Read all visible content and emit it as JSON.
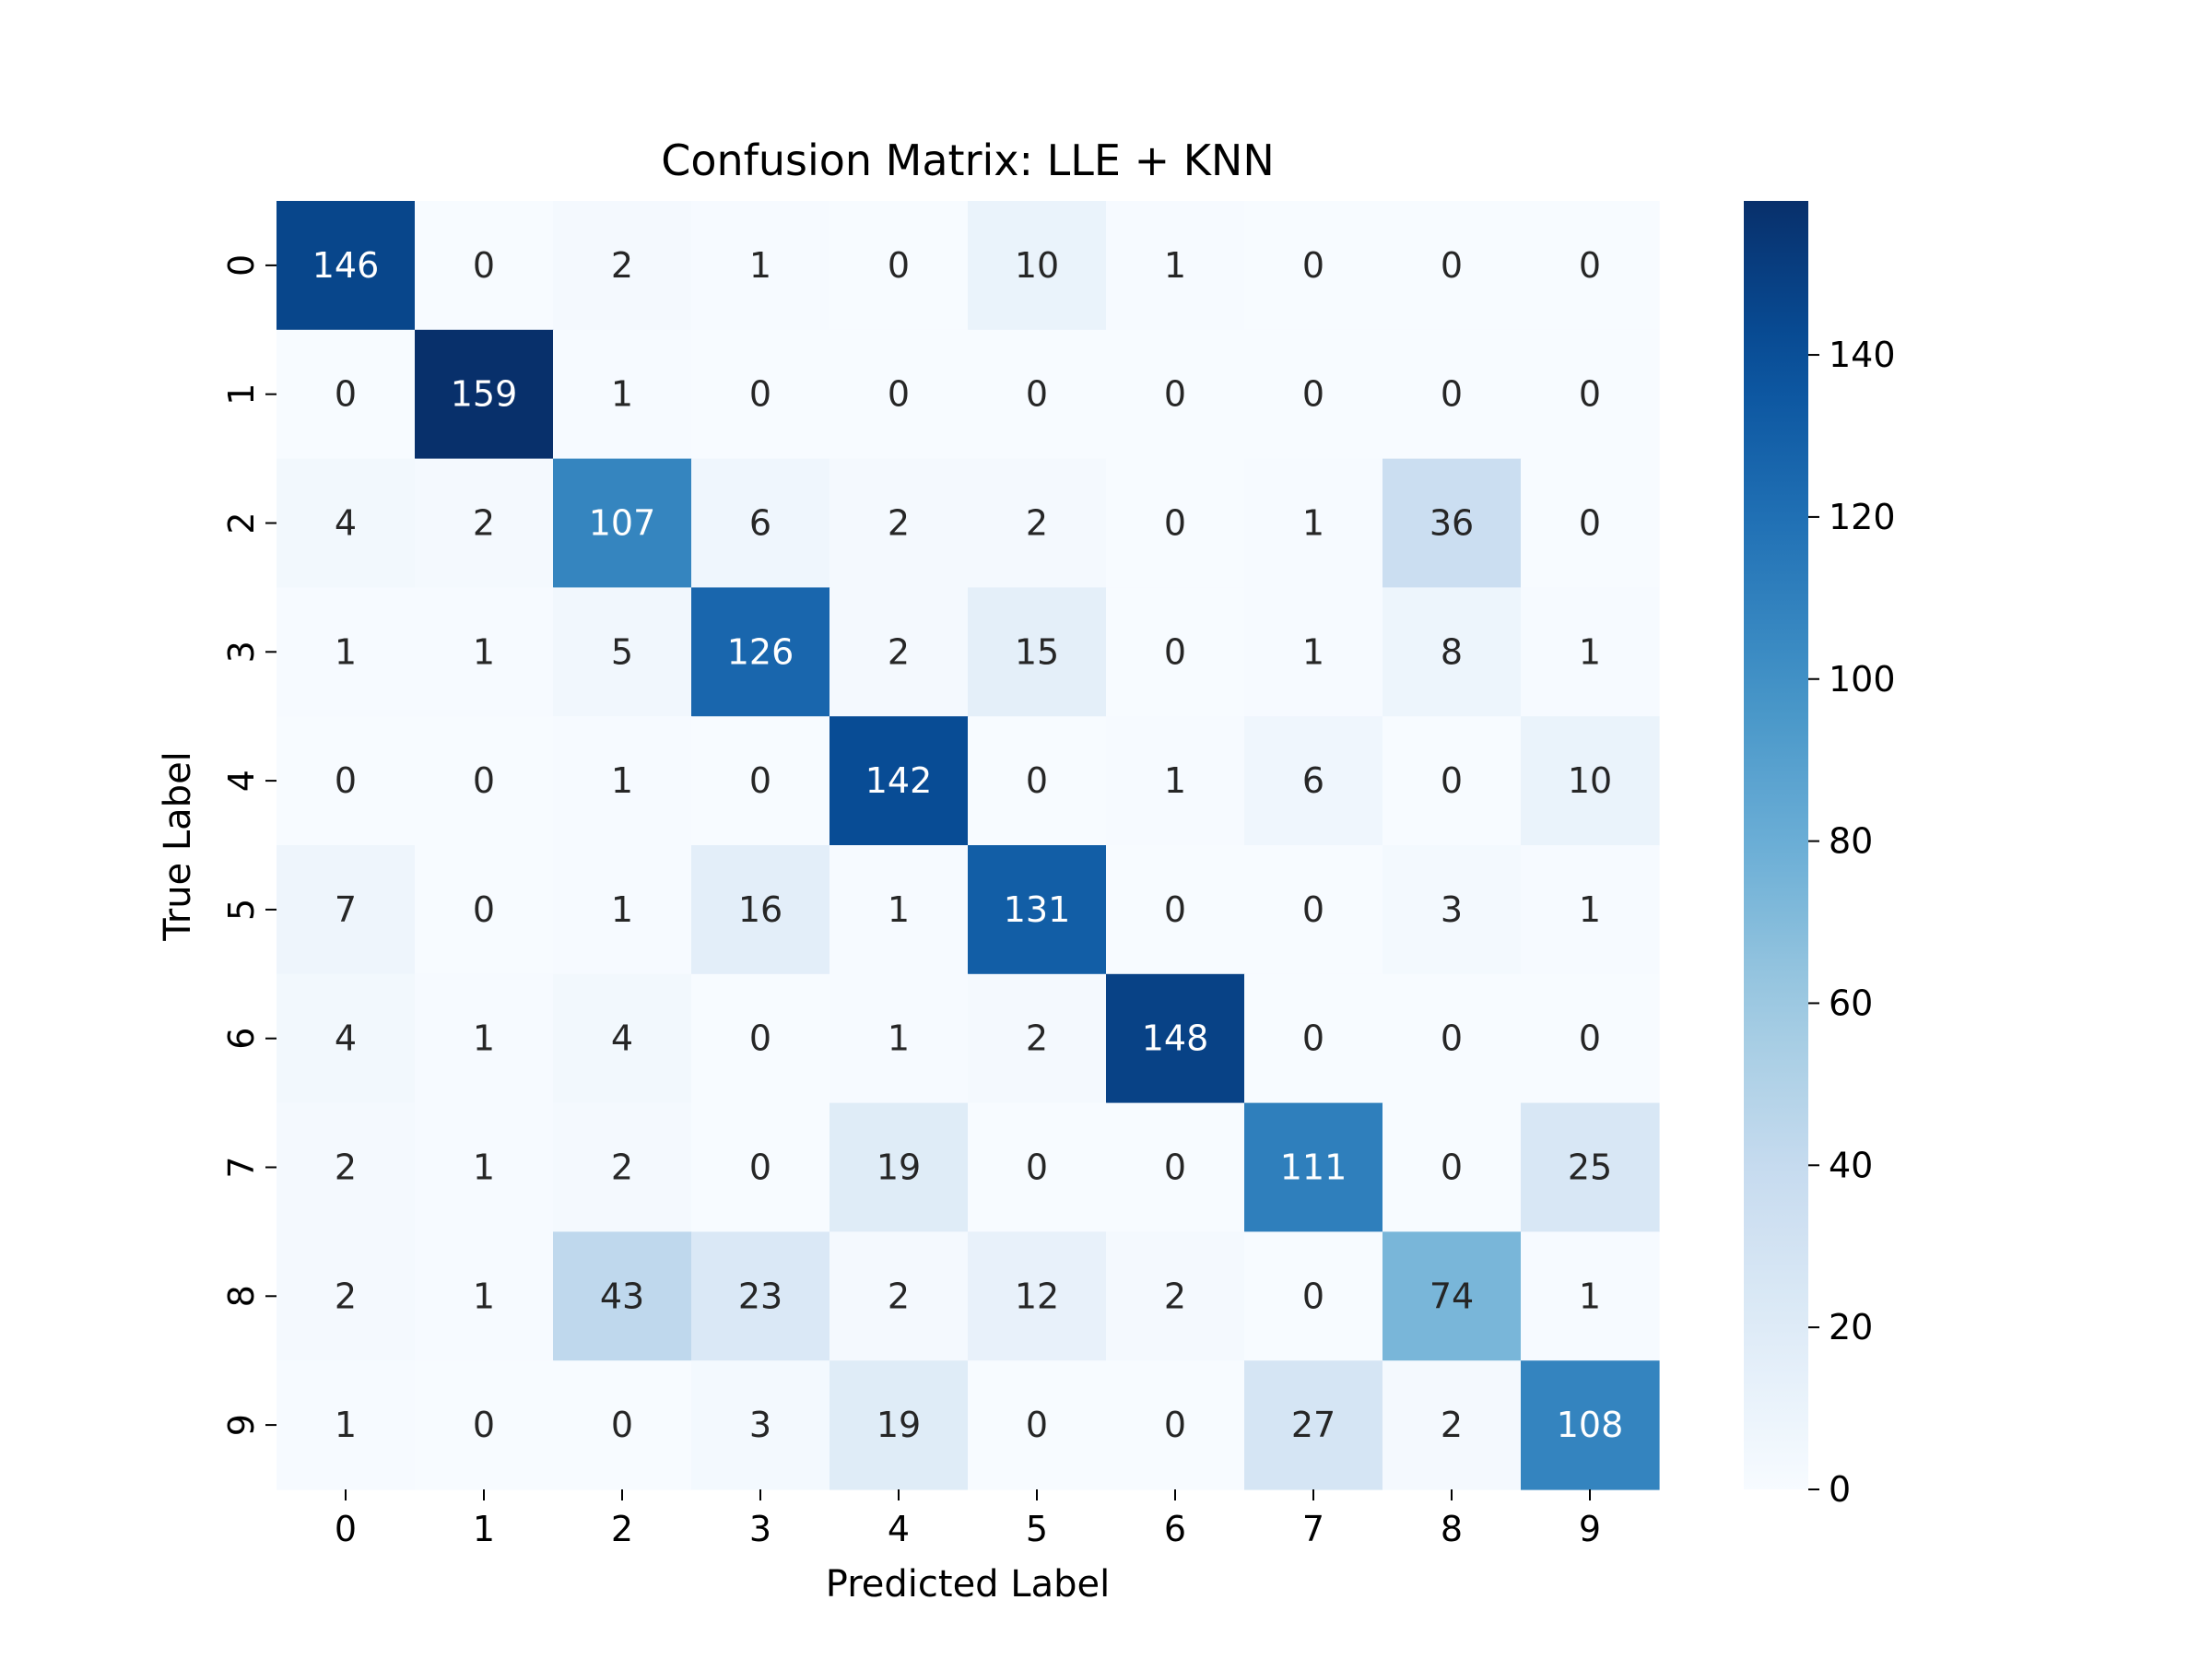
{
  "chart_data": {
    "type": "heatmap",
    "title": "Confusion Matrix: LLE + KNN",
    "xlabel": "Predicted Label",
    "ylabel": "True Label",
    "x_categories": [
      "0",
      "1",
      "2",
      "3",
      "4",
      "5",
      "6",
      "7",
      "8",
      "9"
    ],
    "y_categories": [
      "0",
      "1",
      "2",
      "3",
      "4",
      "5",
      "6",
      "7",
      "8",
      "9"
    ],
    "values": [
      [
        146,
        0,
        2,
        1,
        0,
        10,
        1,
        0,
        0,
        0
      ],
      [
        0,
        159,
        1,
        0,
        0,
        0,
        0,
        0,
        0,
        0
      ],
      [
        4,
        2,
        107,
        6,
        2,
        2,
        0,
        1,
        36,
        0
      ],
      [
        1,
        1,
        5,
        126,
        2,
        15,
        0,
        1,
        8,
        1
      ],
      [
        0,
        0,
        1,
        0,
        142,
        0,
        1,
        6,
        0,
        10
      ],
      [
        7,
        0,
        1,
        16,
        1,
        131,
        0,
        0,
        3,
        1
      ],
      [
        4,
        1,
        4,
        0,
        1,
        2,
        148,
        0,
        0,
        0
      ],
      [
        2,
        1,
        2,
        0,
        19,
        0,
        0,
        111,
        0,
        25
      ],
      [
        2,
        1,
        43,
        23,
        2,
        12,
        2,
        0,
        74,
        1
      ],
      [
        1,
        0,
        0,
        3,
        19,
        0,
        0,
        27,
        2,
        108
      ]
    ],
    "colorbar": {
      "range": [
        0,
        159
      ],
      "ticks": [
        "0",
        "20",
        "40",
        "60",
        "80",
        "100",
        "120",
        "140"
      ],
      "colormap": "Blues"
    },
    "colors": {
      "text_light": "#ffffff",
      "text_dark": "#262626",
      "axis": "#000000"
    }
  }
}
